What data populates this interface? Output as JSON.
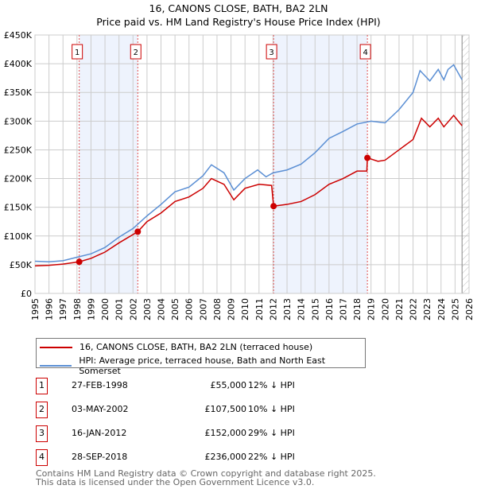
{
  "chart_data": {
    "type": "line",
    "title": "16, CANONS CLOSE, BATH, BA2 2LN",
    "subtitle": "Price paid vs. HM Land Registry's House Price Index (HPI)",
    "xlim": [
      1995,
      2026
    ],
    "ylim": [
      0,
      450000
    ],
    "x_ticks": [
      "1995",
      "1996",
      "1997",
      "1998",
      "1999",
      "2000",
      "2001",
      "2002",
      "2003",
      "2004",
      "2005",
      "2006",
      "2007",
      "2008",
      "2009",
      "2010",
      "2011",
      "2012",
      "2013",
      "2014",
      "2015",
      "2016",
      "2017",
      "2018",
      "2019",
      "2020",
      "2021",
      "2022",
      "2023",
      "2024",
      "2025",
      "2026"
    ],
    "y_ticks": [
      {
        "v": 0,
        "label": "£0"
      },
      {
        "v": 50000,
        "label": "£50K"
      },
      {
        "v": 100000,
        "label": "£100K"
      },
      {
        "v": 150000,
        "label": "£150K"
      },
      {
        "v": 200000,
        "label": "£200K"
      },
      {
        "v": 250000,
        "label": "£250K"
      },
      {
        "v": 300000,
        "label": "£300K"
      },
      {
        "v": 350000,
        "label": "£350K"
      },
      {
        "v": 400000,
        "label": "£400K"
      },
      {
        "v": 450000,
        "label": "£450K"
      }
    ],
    "grid": true,
    "forecast_hatch_from": 2025.5,
    "series": [
      {
        "name": "16, CANONS CLOSE, BATH, BA2 2LN (terraced house)",
        "color": "#cc0000",
        "x": [
          1995,
          1996,
          1997,
          1998.16,
          1999,
          2000,
          2001,
          2002.34,
          2003,
          2004,
          2005,
          2006,
          2007,
          2007.6,
          2008.5,
          2009.2,
          2010,
          2011,
          2011.9,
          2012.04,
          2013,
          2014,
          2015,
          2016,
          2017,
          2018,
          2018.7,
          2018.74,
          2019.5,
          2020,
          2021,
          2022,
          2022.6,
          2023.2,
          2023.8,
          2024.2,
          2024.9,
          2025.5
        ],
        "y": [
          48000,
          49000,
          51000,
          55000,
          61000,
          72000,
          88000,
          107500,
          125000,
          140000,
          160000,
          168000,
          183000,
          200000,
          190000,
          163000,
          183000,
          190000,
          188000,
          152000,
          155000,
          160000,
          172000,
          190000,
          200000,
          213000,
          213000,
          236000,
          230000,
          232000,
          250000,
          268000,
          305000,
          290000,
          305000,
          290000,
          310000,
          292000
        ]
      },
      {
        "name": "HPI: Average price, terraced house, Bath and North East Somerset",
        "color": "#5b8fd4",
        "x": [
          1995,
          1996,
          1997,
          1998,
          1999,
          2000,
          2001,
          2002,
          2003,
          2004,
          2005,
          2006,
          2007,
          2007.6,
          2008.5,
          2009.2,
          2010,
          2010.9,
          2011.5,
          2012,
          2013,
          2014,
          2015,
          2016,
          2017,
          2018,
          2019,
          2020,
          2021,
          2022,
          2022.5,
          2023.2,
          2023.8,
          2024.2,
          2024.5,
          2024.9,
          2025.5
        ],
        "y": [
          56000,
          55000,
          57000,
          63000,
          69000,
          80000,
          98000,
          113000,
          135000,
          155000,
          177000,
          185000,
          205000,
          224000,
          210000,
          180000,
          200000,
          215000,
          203000,
          210000,
          215000,
          225000,
          245000,
          270000,
          282000,
          295000,
          300000,
          297000,
          320000,
          350000,
          388000,
          370000,
          390000,
          372000,
          390000,
          398000,
          372000
        ]
      }
    ],
    "sales": [
      {
        "label": "1",
        "x": 2002.34,
        "date": "03-MAY-2002",
        "price": "£107,500",
        "hpi": "10% ↓ HPI",
        "y": 107500
      },
      {
        "label": "1",
        "x": 1998.16,
        "date": "27-FEB-1998",
        "price": "£55,000",
        "hpi": "12% ↓ HPI",
        "y": 55000
      }
    ],
    "transactions": [
      {
        "label": "1",
        "x": 1998.16,
        "date": "27-FEB-1998",
        "price": "£55,000",
        "hpi": "12% ↓ HPI",
        "y": 55000
      },
      {
        "label": "2",
        "x": 2002.34,
        "date": "03-MAY-2002",
        "price": "£107,500",
        "hpi": "10% ↓ HPI",
        "y": 107500
      },
      {
        "label": "3",
        "x": 2012.04,
        "date": "16-JAN-2012",
        "price": "£152,000",
        "hpi": "29% ↓ HPI",
        "y": 152000
      },
      {
        "label": "4",
        "x": 2018.74,
        "date": "28-SEP-2018",
        "price": "£236,000",
        "hpi": "22% ↓ HPI",
        "y": 236000
      }
    ],
    "shaded_periods": [
      [
        1998.16,
        2002.34
      ],
      [
        2012.04,
        2018.74
      ]
    ]
  },
  "footer": {
    "line1": "Contains HM Land Registry data © Crown copyright and database right 2025.",
    "line2": "This data is licensed under the Open Government Licence v3.0."
  }
}
